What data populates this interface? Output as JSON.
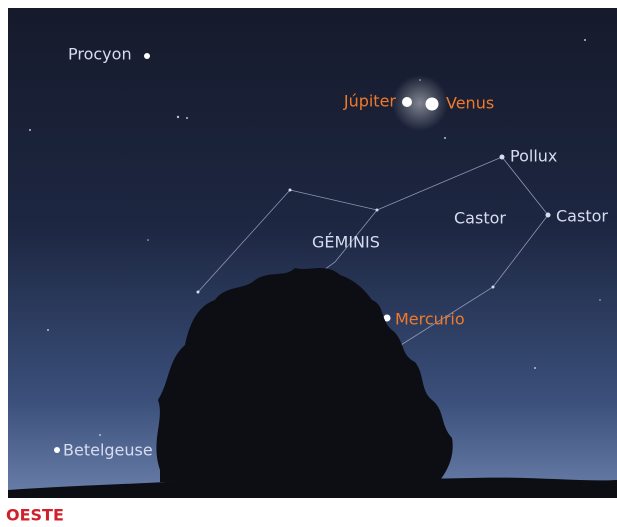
{
  "labels": {
    "procyon": "Procyon",
    "jupiter": "Júpiter",
    "venus": "Venus",
    "pollux": "Pollux",
    "castor_name": "Castor",
    "castor_star": "Castor",
    "constellation": "GÉMINIS",
    "mercurio": "Mercurio",
    "betelgeuse": "Betelgeuse"
  },
  "direction": "OESTE"
}
